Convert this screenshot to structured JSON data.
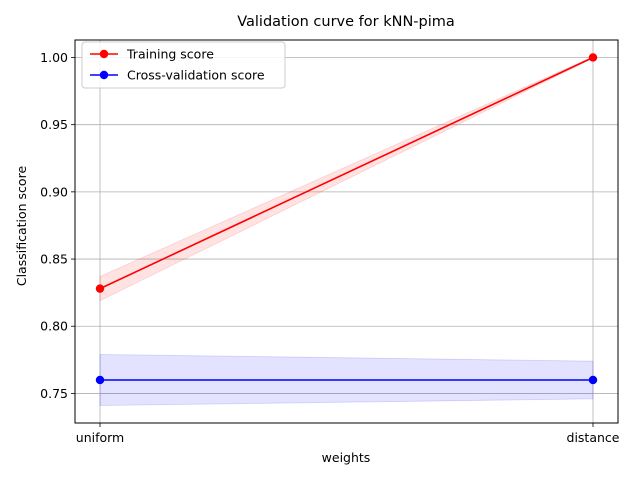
{
  "chart_data": {
    "type": "line",
    "title": "Validation curve for kNN-pima",
    "xlabel": "weights",
    "ylabel": "Classification score",
    "categories": [
      "uniform",
      "distance"
    ],
    "ylim": [
      0.728,
      1.013
    ],
    "yticks": [
      "0.75",
      "0.80",
      "0.85",
      "0.90",
      "0.95",
      "1.00"
    ],
    "grid": true,
    "legend_position": "top-left",
    "series": [
      {
        "name": "Training score",
        "color": "#ff0000",
        "band_color": "#ff0000",
        "values": [
          0.828,
          1.0
        ],
        "lower": [
          0.819,
          0.9995
        ],
        "upper": [
          0.837,
          1.0005
        ]
      },
      {
        "name": "Cross-validation score",
        "color": "#0000ff",
        "band_color": "#0000ff",
        "values": [
          0.76,
          0.76
        ],
        "lower": [
          0.741,
          0.746
        ],
        "upper": [
          0.779,
          0.774
        ]
      }
    ]
  }
}
